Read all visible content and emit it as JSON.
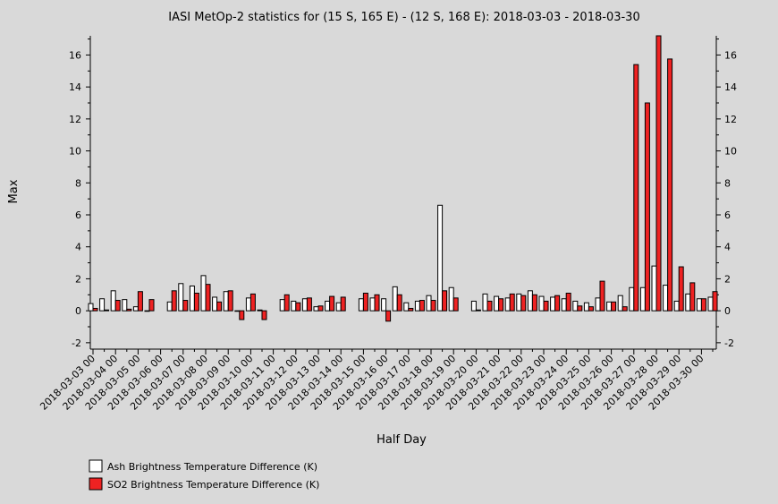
{
  "chart_data": {
    "type": "bar",
    "title": "IASI MetOp-2 statistics for (15 S, 165 E) - (12 S, 168 E): 2018-03-03 - 2018-03-30",
    "xlabel": "Half Day",
    "ylabel": "Max",
    "ylim": [
      -2.4,
      17.2
    ],
    "yticks": [
      -2,
      0,
      2,
      4,
      6,
      8,
      10,
      12,
      14,
      16
    ],
    "grid": false,
    "legend_position": "bottom-left",
    "xtick_labels": [
      "2018-03-03 00",
      "2018-03-04 00",
      "2018-03-05 00",
      "2018-03-06 00",
      "2018-03-07 00",
      "2018-03-08 00",
      "2018-03-09 00",
      "2018-03-10 00",
      "2018-03-11 00",
      "2018-03-12 00",
      "2018-03-13 00",
      "2018-03-14 00",
      "2018-03-15 00",
      "2018-03-16 00",
      "2018-03-17 00",
      "2018-03-18 00",
      "2018-03-19 00",
      "2018-03-20 00",
      "2018-03-21 00",
      "2018-03-22 00",
      "2018-03-23 00",
      "2018-03-24 00",
      "2018-03-25 00",
      "2018-03-26 00",
      "2018-03-27 00",
      "2018-03-28 00",
      "2018-03-29 00",
      "2018-03-30 00"
    ],
    "series": [
      {
        "name": "Ash Brightness Temperature Difference (K)",
        "color": "#ffffff",
        "values": [
          0.45,
          0.75,
          1.25,
          0.7,
          0.25,
          0.0,
          null,
          0.55,
          1.7,
          1.55,
          2.2,
          0.85,
          1.2,
          0.0,
          0.8,
          0.05,
          null,
          0.7,
          0.6,
          0.75,
          0.25,
          0.6,
          0.5,
          null,
          0.75,
          0.8,
          0.75,
          1.5,
          0.5,
          0.6,
          0.95,
          6.6,
          1.45,
          null,
          0.6,
          1.05,
          0.9,
          0.8,
          1.05,
          1.25,
          0.9,
          0.85,
          0.75,
          0.6,
          0.5,
          0.8,
          0.55,
          0.95,
          1.45,
          1.45,
          2.8,
          1.6,
          0.6,
          1.05,
          0.75,
          0.85
        ]
      },
      {
        "name": "SO2 Brightness Temperature Difference (K)",
        "color": "#ee2222",
        "values": [
          0.15,
          0.05,
          0.65,
          0.1,
          1.2,
          0.7,
          null,
          1.25,
          0.65,
          1.1,
          1.65,
          0.55,
          1.25,
          -0.55,
          1.05,
          -0.55,
          null,
          1.0,
          0.5,
          0.8,
          0.3,
          0.9,
          0.85,
          null,
          1.1,
          1.0,
          -0.65,
          1.0,
          0.15,
          0.65,
          0.65,
          1.25,
          0.8,
          null,
          0.05,
          0.6,
          0.75,
          1.05,
          0.95,
          1.0,
          0.6,
          0.95,
          1.1,
          0.3,
          0.25,
          1.85,
          0.55,
          0.25,
          15.4,
          13.0,
          17.2,
          15.75,
          2.75,
          1.75,
          0.75,
          1.2
        ]
      }
    ]
  }
}
